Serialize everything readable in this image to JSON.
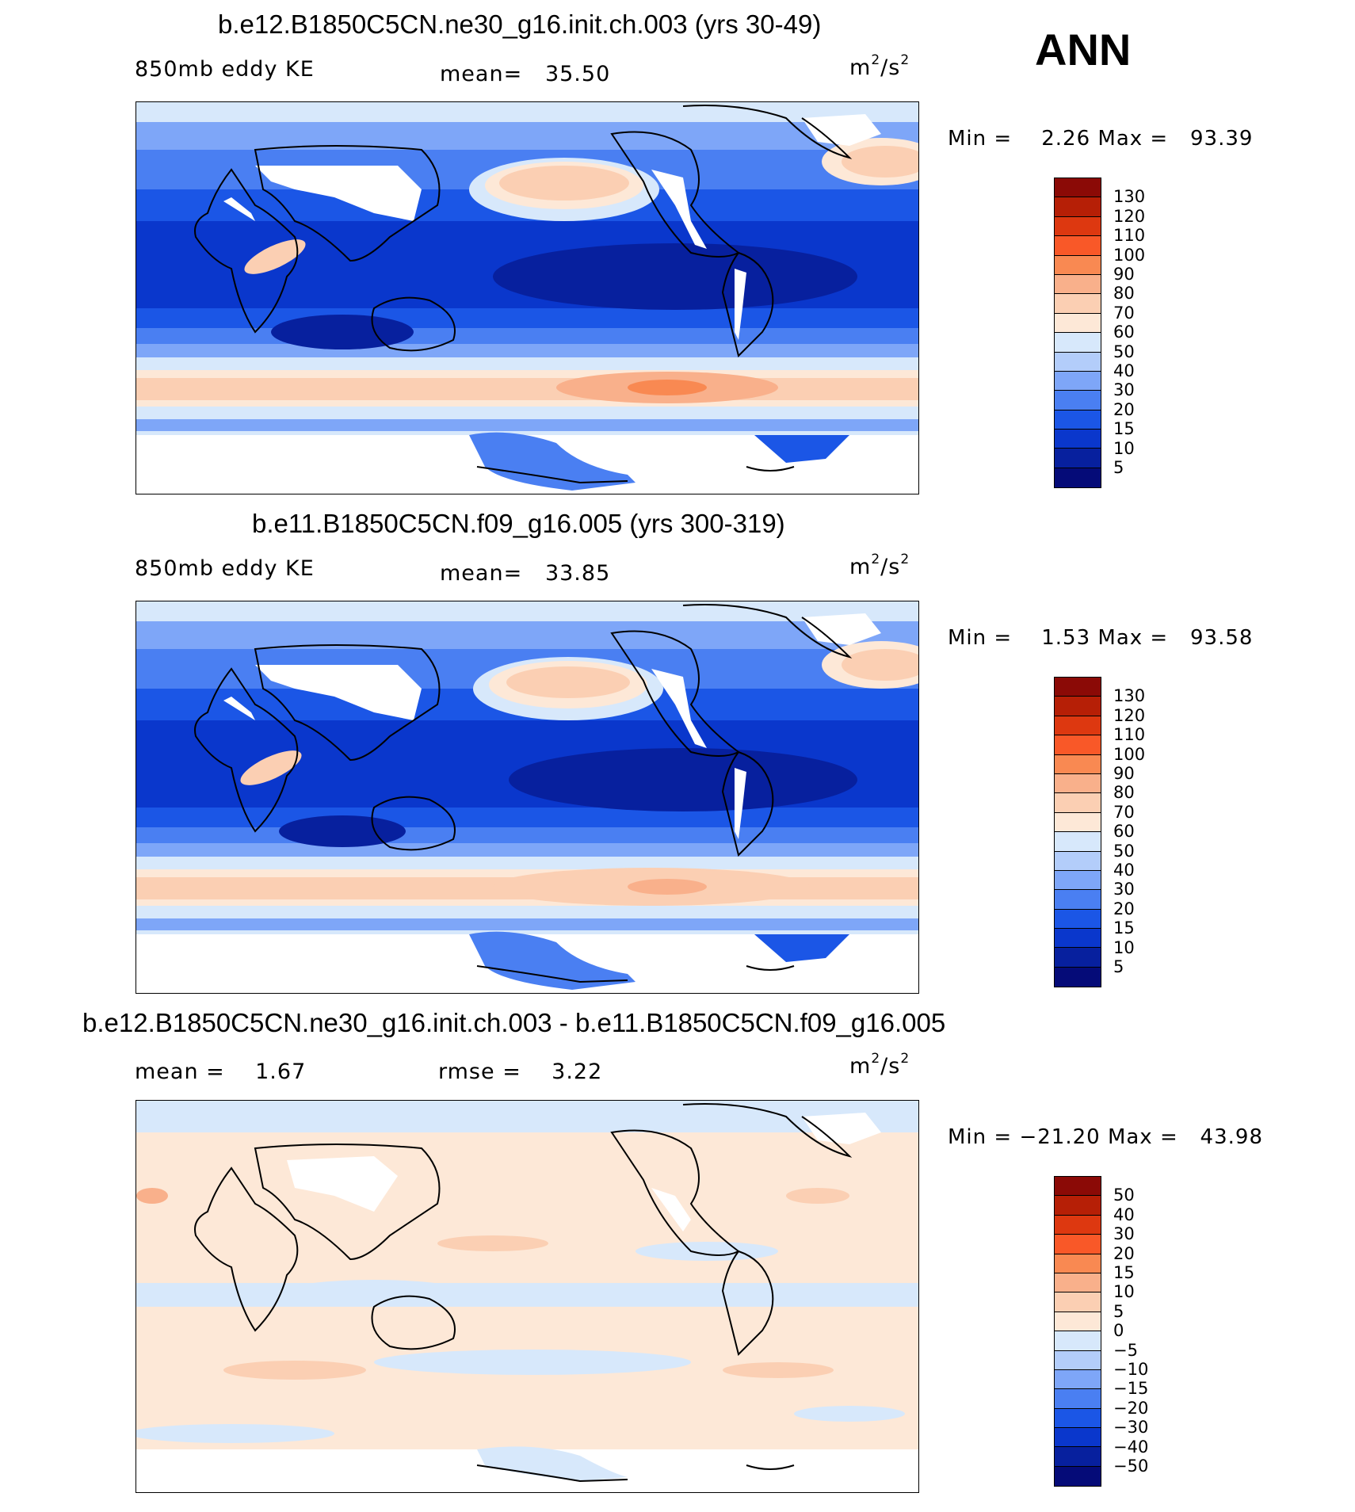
{
  "season_label": "ANN",
  "units": {
    "base": "m",
    "exp1": "2",
    "sep": "/s",
    "exp2": "2"
  },
  "panels": [
    {
      "title": "b.e12.B1850C5CN.ne30_g16.init.ch.003 (yrs 30-49)",
      "left_label": "850mb eddy KE",
      "stat_label": "mean=",
      "stat_value": "35.50",
      "min_label": "Min =",
      "min_value": "2.26",
      "max_label": "Max =",
      "max_value": "93.39",
      "colorbar": {
        "labels": [
          "130",
          "120",
          "110",
          "100",
          "90",
          "80",
          "70",
          "60",
          "50",
          "40",
          "30",
          "20",
          "15",
          "10",
          "5"
        ],
        "colors": [
          "#8b0a06",
          "#b61f06",
          "#dd3810",
          "#f95828",
          "#f98952",
          "#f9b08b",
          "#fbcfb3",
          "#fde8d7",
          "#d7e8fb",
          "#b3cdfa",
          "#7ea6f8",
          "#4a7ff2",
          "#1b56e6",
          "#0a37cc",
          "#07209e",
          "#050b78"
        ]
      },
      "map_type": "eddy_ke"
    },
    {
      "title": "b.e11.B1850C5CN.f09_g16.005 (yrs 300-319)",
      "left_label": "850mb eddy KE",
      "stat_label": "mean=",
      "stat_value": "33.85",
      "min_label": "Min =",
      "min_value": "1.53",
      "max_label": "Max =",
      "max_value": "93.58",
      "colorbar": {
        "labels": [
          "130",
          "120",
          "110",
          "100",
          "90",
          "80",
          "70",
          "60",
          "50",
          "40",
          "30",
          "20",
          "15",
          "10",
          "5"
        ],
        "colors": [
          "#8b0a06",
          "#b61f06",
          "#dd3810",
          "#f95828",
          "#f98952",
          "#f9b08b",
          "#fbcfb3",
          "#fde8d7",
          "#d7e8fb",
          "#b3cdfa",
          "#7ea6f8",
          "#4a7ff2",
          "#1b56e6",
          "#0a37cc",
          "#07209e",
          "#050b78"
        ]
      },
      "map_type": "eddy_ke"
    },
    {
      "title": "b.e12.B1850C5CN.ne30_g16.init.ch.003 - b.e11.B1850C5CN.f09_g16.005",
      "left_label": "mean =",
      "left_value": "1.67",
      "stat_label": "rmse =",
      "stat_value": "3.22",
      "min_label": "Min =",
      "min_value": "−21.20",
      "max_label": "Max =",
      "max_value": "43.98",
      "colorbar": {
        "labels": [
          "50",
          "40",
          "30",
          "20",
          "15",
          "10",
          "5",
          "0",
          "−5",
          "−10",
          "−15",
          "−20",
          "−30",
          "−40",
          "−50"
        ],
        "colors": [
          "#8b0a06",
          "#b61f06",
          "#dd3810",
          "#f95828",
          "#f98952",
          "#f9b08b",
          "#fbcfb3",
          "#fde8d7",
          "#d7e8fb",
          "#b3cdfa",
          "#7ea6f8",
          "#4a7ff2",
          "#1b56e6",
          "#0a37cc",
          "#07209e",
          "#050b78"
        ]
      },
      "map_type": "difference"
    }
  ]
}
